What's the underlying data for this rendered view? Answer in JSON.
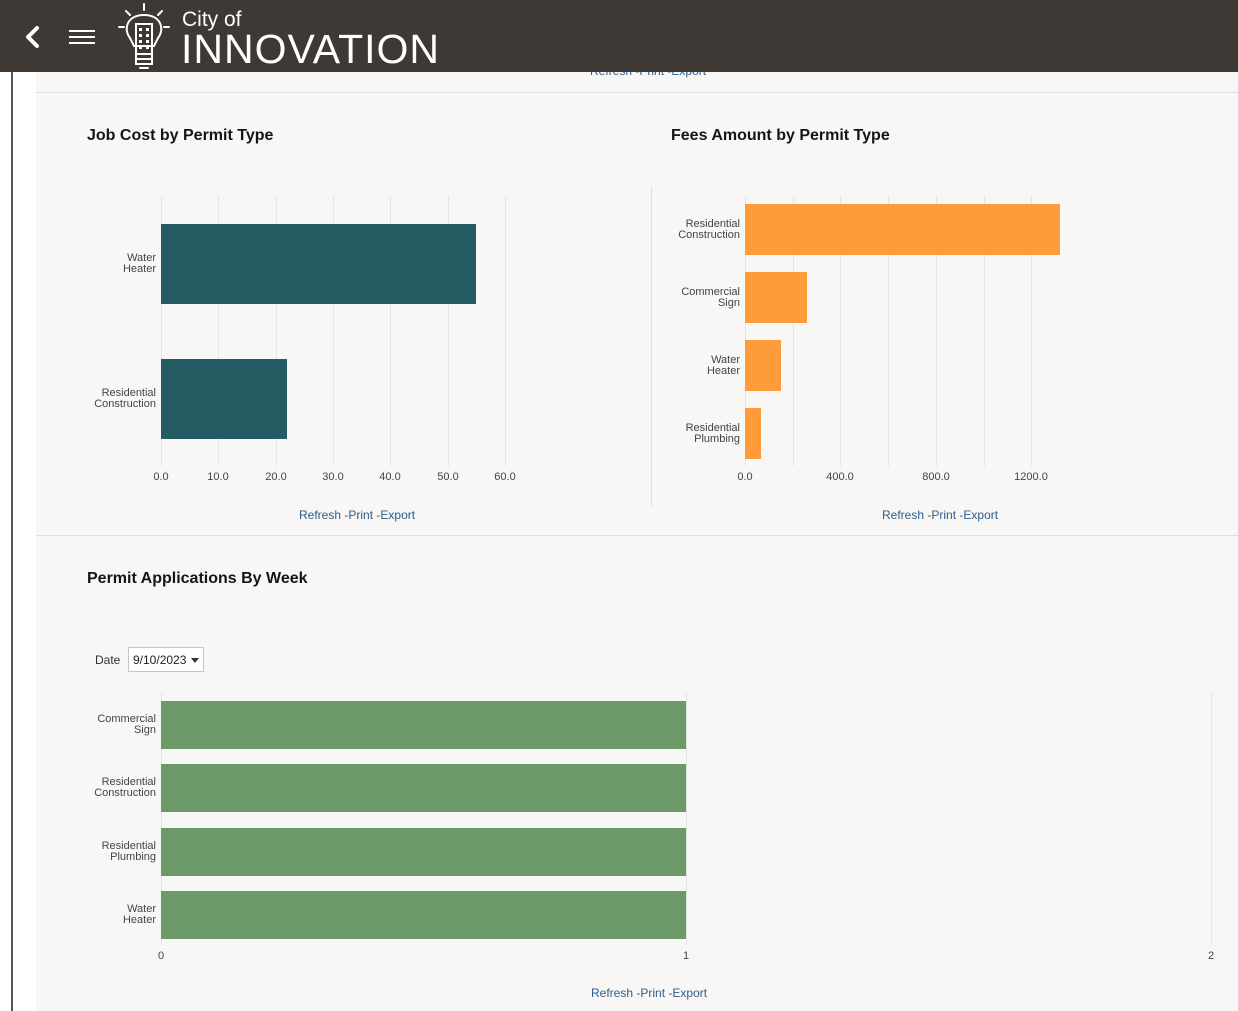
{
  "header": {
    "brand_small": "City of",
    "brand_big": "INNOVATION",
    "bar_color": "#3e3935"
  },
  "links": {
    "refresh": "Refresh",
    "print": "Print",
    "export": "Export",
    "sep": "-"
  },
  "charts": {
    "job_cost": {
      "title": "Job Cost by Permit Type"
    },
    "fees": {
      "title": "Fees Amount by Permit Type"
    },
    "weekly": {
      "title": "Permit Applications By Week"
    }
  },
  "filter": {
    "date_label": "Date",
    "date_value": "9/10/2023"
  },
  "chart_data": [
    {
      "type": "bar",
      "orientation": "horizontal",
      "title": "Job Cost by Permit Type",
      "categories": [
        "Water Heater",
        "Residential Construction"
      ],
      "values": [
        55,
        22
      ],
      "xlim": [
        0,
        60
      ],
      "ticks": [
        "0.0",
        "10.0",
        "20.0",
        "30.0",
        "40.0",
        "50.0",
        "60.0"
      ],
      "color": "#255b63",
      "grid": true
    },
    {
      "type": "bar",
      "orientation": "horizontal",
      "title": "Fees Amount by Permit Type",
      "categories": [
        "Residential Construction",
        "Commercial Sign",
        "Water Heater",
        "Residential Plumbing"
      ],
      "values": [
        1320,
        260,
        150,
        65
      ],
      "xlim": [
        0,
        1400
      ],
      "ticks": [
        "0.0",
        "400.0",
        "800.0",
        "1200.0"
      ],
      "color": "#ff9b38",
      "grid": true
    },
    {
      "type": "bar",
      "orientation": "horizontal",
      "title": "Permit Applications By Week",
      "categories": [
        "Commercial Sign",
        "Residential Construction",
        "Residential Plumbing",
        "Water Heater"
      ],
      "values": [
        1,
        1,
        1,
        1
      ],
      "xlim": [
        0,
        2
      ],
      "ticks": [
        "0",
        "1",
        "2"
      ],
      "color": "#6a9a68",
      "grid": true
    }
  ]
}
